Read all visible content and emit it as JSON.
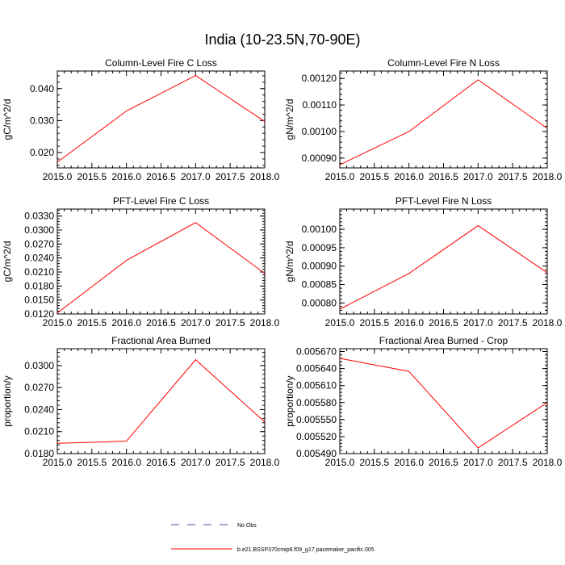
{
  "title": "India (10-23.5N,70-90E)",
  "chart_data": [
    {
      "type": "line",
      "title": "Column-Level Fire C Loss",
      "ylabel": "gC/m^2/d",
      "xlabel": "",
      "xlim": [
        2015.0,
        2018.0
      ],
      "ylim": [
        0.0152,
        0.0455
      ],
      "xticks": [
        "2015.0",
        "2015.5",
        "2016.0",
        "2016.5",
        "2017.0",
        "2017.5",
        "2018.0"
      ],
      "yticks": [
        0.02,
        0.03,
        0.04
      ],
      "ytick_labels": [
        "0.020",
        "0.030",
        "0.040"
      ],
      "grid": false,
      "series": [
        {
          "name": "b.e21.BSSP370cmip6.f09_g17.pacemaker_pacific.005",
          "color": "#ff0000",
          "x": [
            2015,
            2016,
            2017,
            2018
          ],
          "y": [
            0.017,
            0.033,
            0.0441,
            0.0297
          ]
        }
      ]
    },
    {
      "type": "line",
      "title": "Column-Level Fire N Loss",
      "ylabel": "gN/m^2/d",
      "xlabel": "",
      "xlim": [
        2015.0,
        2018.0
      ],
      "ylim": [
        0.000863,
        0.001228
      ],
      "xticks": [
        "2015.0",
        "2015.5",
        "2016.0",
        "2016.5",
        "2017.0",
        "2017.5",
        "2018.0"
      ],
      "yticks": [
        0.0009,
        0.001,
        0.0011,
        0.0012
      ],
      "ytick_labels": [
        "0.00090",
        "0.00100",
        "0.00110",
        "0.00120"
      ],
      "grid": false,
      "series": [
        {
          "name": "b.e21.BSSP370cmip6.f09_g17.pacemaker_pacific.005",
          "color": "#ff0000",
          "x": [
            2015,
            2016,
            2017,
            2018
          ],
          "y": [
            0.000875,
            0.001,
            0.001195,
            0.001012
          ]
        }
      ]
    },
    {
      "type": "line",
      "title": "PFT-Level Fire C Loss",
      "ylabel": "gC/m^2/d",
      "xlabel": "",
      "xlim": [
        2015.0,
        2018.0
      ],
      "ylim": [
        0.012,
        0.0345
      ],
      "xticks": [
        "2015.0",
        "2015.5",
        "2016.0",
        "2016.5",
        "2017.0",
        "2017.5",
        "2018.0"
      ],
      "yticks": [
        0.012,
        0.015,
        0.018,
        0.021,
        0.024,
        0.027,
        0.03,
        0.033
      ],
      "ytick_labels": [
        "0.0120",
        "0.0150",
        "0.0180",
        "0.0210",
        "0.0240",
        "0.0270",
        "0.0300",
        "0.0330"
      ],
      "grid": false,
      "series": [
        {
          "name": "b.e21.BSSP370cmip6.f09_g17.pacemaker_pacific.005",
          "color": "#ff0000",
          "x": [
            2015,
            2016,
            2017,
            2018
          ],
          "y": [
            0.0122,
            0.0235,
            0.0316,
            0.0207
          ]
        }
      ]
    },
    {
      "type": "line",
      "title": "PFT-Level Fire N Loss",
      "ylabel": "gN/m^2/d",
      "xlabel": "",
      "xlim": [
        2015.0,
        2018.0
      ],
      "ylim": [
        0.00077,
        0.001055
      ],
      "xticks": [
        "2015.0",
        "2015.5",
        "2016.0",
        "2016.5",
        "2017.0",
        "2017.5",
        "2018.0"
      ],
      "yticks": [
        0.0008,
        0.00085,
        0.0009,
        0.00095,
        0.001
      ],
      "ytick_labels": [
        "0.00080",
        "0.00085",
        "0.00090",
        "0.00095",
        "0.00100"
      ],
      "grid": false,
      "series": [
        {
          "name": "b.e21.BSSP370cmip6.f09_g17.pacemaker_pacific.005",
          "color": "#ff0000",
          "x": [
            2015,
            2016,
            2017,
            2018
          ],
          "y": [
            0.000783,
            0.00088,
            0.00101,
            0.000882
          ]
        }
      ]
    },
    {
      "type": "line",
      "title": "Fractional Area Burned",
      "ylabel": "proportion/y",
      "xlabel": "",
      "xlim": [
        2015.0,
        2018.0
      ],
      "ylim": [
        0.018,
        0.0323
      ],
      "xticks": [
        "2015.0",
        "2015.5",
        "2016.0",
        "2016.5",
        "2017.0",
        "2017.5",
        "2018.0"
      ],
      "yticks": [
        0.018,
        0.021,
        0.024,
        0.027,
        0.03
      ],
      "ytick_labels": [
        "0.0180",
        "0.0210",
        "0.0240",
        "0.0270",
        "0.0300"
      ],
      "grid": false,
      "series": [
        {
          "name": "b.e21.BSSP370cmip6.f09_g17.pacemaker_pacific.005",
          "color": "#ff0000",
          "x": [
            2015,
            2016,
            2017,
            2018
          ],
          "y": [
            0.0194,
            0.0197,
            0.0308,
            0.0223
          ]
        }
      ]
    },
    {
      "type": "line",
      "title": "Fractional Area Burned - Crop",
      "ylabel": "proportion/y",
      "xlabel": "",
      "xlim": [
        2015.0,
        2018.0
      ],
      "ylim": [
        0.00549,
        0.005675
      ],
      "xticks": [
        "2015.0",
        "2015.5",
        "2016.0",
        "2016.5",
        "2017.0",
        "2017.5",
        "2018.0"
      ],
      "yticks": [
        0.00549,
        0.00552,
        0.00555,
        0.00558,
        0.00561,
        0.00564,
        0.00567
      ],
      "ytick_labels": [
        "0.005490",
        "0.005520",
        "0.005550",
        "0.005580",
        "0.005610",
        "0.005640",
        "0.005670"
      ],
      "grid": false,
      "series": [
        {
          "name": "b.e21.BSSP370cmip6.f09_g17.pacemaker_pacific.005",
          "color": "#ff0000",
          "x": [
            2015,
            2016,
            2017,
            2018
          ],
          "y": [
            0.005658,
            0.005635,
            0.0055,
            0.00558
          ]
        }
      ]
    }
  ],
  "legend": {
    "placement": "bottom-center",
    "items": [
      {
        "label": "No Obs",
        "style": "dashed",
        "color": "#5a4a9a"
      },
      {
        "label": "b.e21.BSSP370cmip6.f09_g17.pacemaker_pacific.005",
        "style": "solid",
        "color": "#ff0000"
      }
    ]
  }
}
